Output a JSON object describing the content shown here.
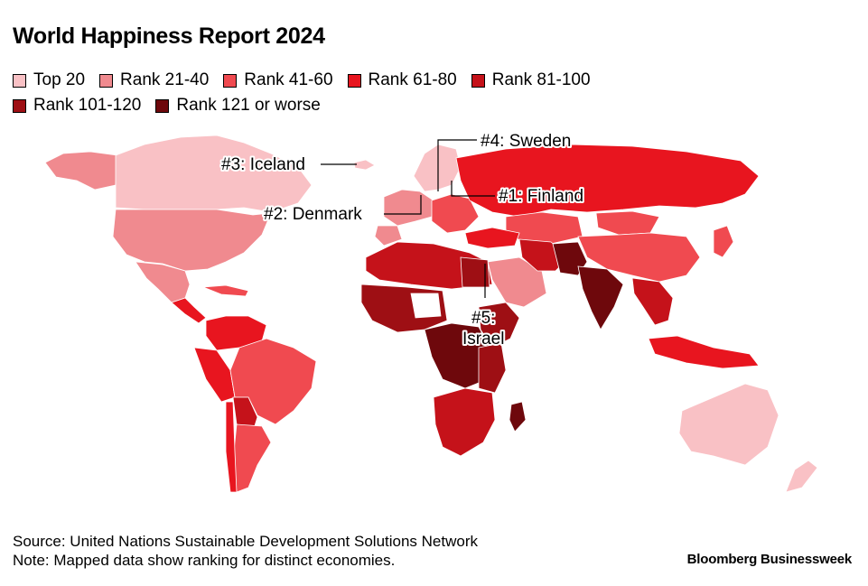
{
  "title": "World Happiness Report 2024",
  "legend": [
    {
      "label": "Top 20",
      "color": "#f9c1c5"
    },
    {
      "label": "Rank 21-40",
      "color": "#f08a8f"
    },
    {
      "label": "Rank 41-60",
      "color": "#f04a50"
    },
    {
      "label": "Rank 61-80",
      "color": "#e8151f"
    },
    {
      "label": "Rank 81-100",
      "color": "#c5121a"
    },
    {
      "label": "Rank 101-120",
      "color": "#9e0f14"
    },
    {
      "label": "Rank 121 or worse",
      "color": "#6e080c"
    }
  ],
  "annotations": {
    "sweden": "#4: Sweden",
    "iceland": "#3: Iceland",
    "finland": "#1: Finland",
    "denmark": "#2: Denmark",
    "israel_line1": "#5:",
    "israel_line2": "Israel"
  },
  "footer": {
    "source": "Source: United Nations Sustainable Development Solutions Network",
    "note": "Note: Mapped data show ranking for distinct economies."
  },
  "brand": "Bloomberg Businessweek"
}
